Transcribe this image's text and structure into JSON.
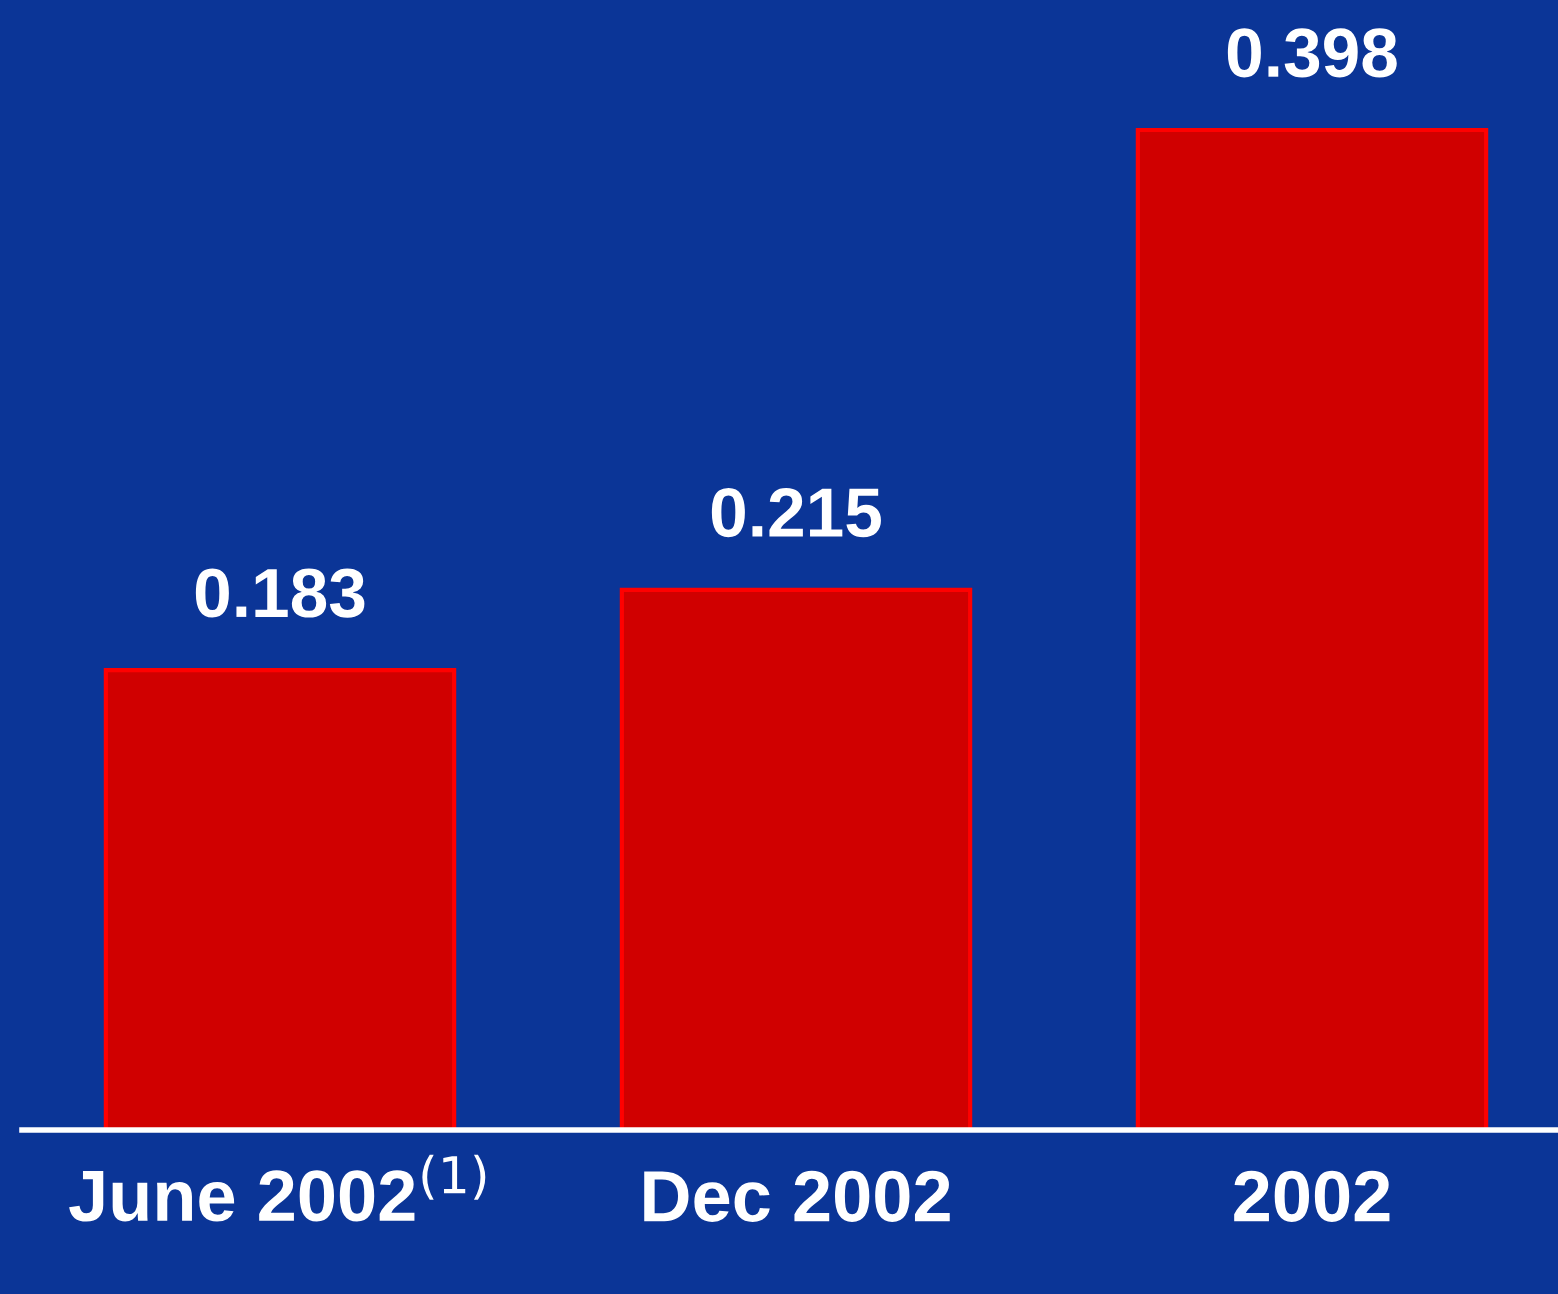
{
  "chart_data": {
    "type": "bar",
    "categories": [
      "June 2002$^{(1)}$",
      "Dec 2002",
      "2002"
    ],
    "values": [
      0.183,
      0.215,
      0.398
    ],
    "color": "#ff0000",
    "data_labels": true,
    "grid": false
  }
}
